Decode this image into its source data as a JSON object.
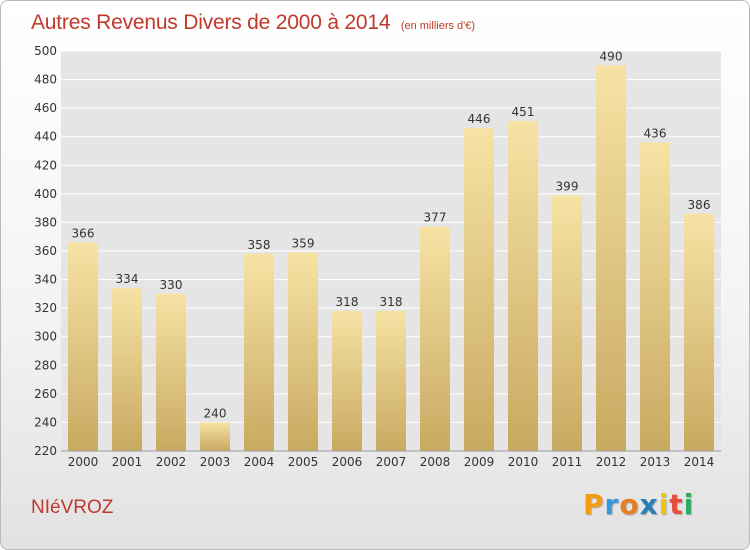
{
  "chart_data": {
    "type": "bar",
    "title": "Autres Revenus Divers de 2000 à 2014",
    "subtitle": "(en milliers d'€)",
    "categories": [
      "2000",
      "2001",
      "2002",
      "2003",
      "2004",
      "2005",
      "2006",
      "2007",
      "2008",
      "2009",
      "2010",
      "2011",
      "2012",
      "2013",
      "2014"
    ],
    "values": [
      366,
      334,
      330,
      240,
      358,
      359,
      318,
      318,
      377,
      446,
      451,
      399,
      490,
      436,
      386
    ],
    "ylim": [
      220,
      500
    ],
    "yticks": [
      220,
      240,
      260,
      280,
      300,
      320,
      340,
      360,
      380,
      400,
      420,
      440,
      460,
      480,
      500
    ],
    "grid": true,
    "bar_color_top": "#f6e3a4",
    "bar_color_bottom": "#c9a961",
    "xlabel": "",
    "ylabel": ""
  },
  "commune": "NIéVROZ",
  "logo": {
    "letters": [
      "P",
      "r",
      "o",
      "x",
      "i",
      "t",
      "i"
    ],
    "colors": [
      "#f39c12",
      "#3498db",
      "#e67e22",
      "#2980b9",
      "#f1c40f",
      "#e74c3c",
      "#27ae60"
    ]
  }
}
